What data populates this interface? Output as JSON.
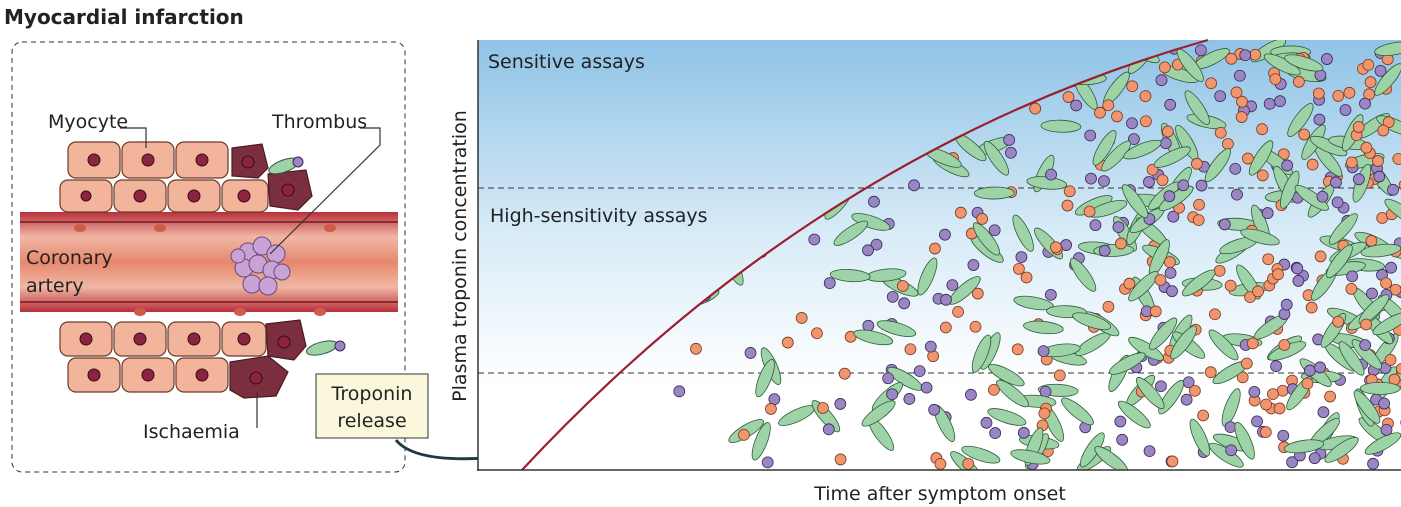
{
  "title": "Myocardial infarction",
  "illustration": {
    "myocyte": "Myocyte",
    "thrombus": "Thrombus",
    "coronary_artery": [
      "Coronary",
      "artery"
    ],
    "ischaemia": "Ischaemia",
    "troponin_release": [
      "Troponin",
      "release"
    ]
  },
  "plot": {
    "bands": [
      "Sensitive assays",
      "High-sensitivity assays"
    ],
    "y_axis_label": "Plasma troponin concentration",
    "x_axis_label": "Time after symptom onset"
  }
}
